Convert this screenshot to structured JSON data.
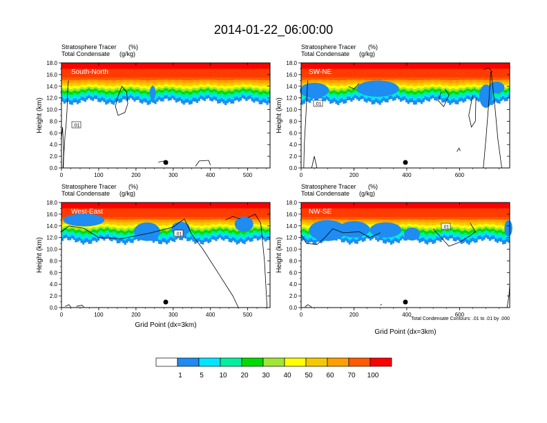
{
  "title": "2014-01-22_06:00:00",
  "chart_data": [
    {
      "type": "heatmap",
      "name": "South-North",
      "tracer_label": "Stratosphere Tracer",
      "tracer_units": "(%)",
      "cond_label": "Total Condensate",
      "cond_units": "(g/kg)",
      "ylabel": "Height (km)",
      "xlabel": "",
      "xlim": [
        0,
        560
      ],
      "ylim": [
        0,
        18
      ],
      "xticks": [
        0,
        100,
        200,
        300,
        400,
        500
      ],
      "yticks": [
        "0.0",
        "2.0",
        "4.0",
        "6.0",
        "8.0",
        "10.0",
        "12.0",
        "14.0",
        "16.0",
        "18.0"
      ],
      "contour_label": ".01",
      "marker_x": 280
    },
    {
      "type": "heatmap",
      "name": "SW-NE",
      "tracer_label": "Stratosphere Tracer",
      "tracer_units": "(%)",
      "cond_label": "Total Condensate",
      "cond_units": "(g/kg)",
      "ylabel": "Height (km)",
      "xlabel": "",
      "xlim": [
        0,
        790
      ],
      "ylim": [
        0,
        18
      ],
      "xticks": [
        0,
        200,
        400,
        600
      ],
      "yticks": [
        "0.0",
        "2.0",
        "4.0",
        "6.0",
        "8.0",
        "10.0",
        "12.0",
        "14.0",
        "16.0",
        "18.0"
      ],
      "contour_label": ".01",
      "marker_x": 395
    },
    {
      "type": "heatmap",
      "name": "West-East",
      "tracer_label": "Stratosphere Tracer",
      "tracer_units": "(%)",
      "cond_label": "Total Condensate",
      "cond_units": "(g/kg)",
      "ylabel": "Height (km)",
      "xlabel": "Grid Point (dx=3km)",
      "xlim": [
        0,
        560
      ],
      "ylim": [
        0,
        18
      ],
      "xticks": [
        0,
        100,
        200,
        300,
        400,
        500
      ],
      "yticks": [
        "0.0",
        "2.0",
        "4.0",
        "6.0",
        "8.0",
        "10.0",
        "12.0",
        "14.0",
        "16.0",
        "18.0"
      ],
      "contour_label": ".01",
      "marker_x": 280
    },
    {
      "type": "heatmap",
      "name": "NW-SE",
      "tracer_label": "Stratosphere Tracer",
      "tracer_units": "(%)",
      "cond_label": "Total Condensate",
      "cond_units": "(g/kg)",
      "ylabel": "Height (km)",
      "xlabel": "Grid Point (dx=3km)",
      "xlim": [
        0,
        790
      ],
      "ylim": [
        0,
        18
      ],
      "xticks": [
        0,
        200,
        400,
        600
      ],
      "yticks": [
        "0.0",
        "2.0",
        "4.0",
        "6.0",
        "8.0",
        "10.0",
        "12.0",
        "14.0",
        "16.0",
        "18.0"
      ],
      "contour_label": ".01",
      "marker_x": 395
    }
  ],
  "contour_note": "Total Condensate Contours: .01 to .01 by .000",
  "colorbar": {
    "levels": [
      "1",
      "5",
      "10",
      "20",
      "30",
      "40",
      "50",
      "60",
      "70",
      "100"
    ],
    "colors": [
      "#ffffff",
      "#1e8cf0",
      "#00e6ff",
      "#00f0a0",
      "#00dc00",
      "#a0e632",
      "#ffff00",
      "#f5c800",
      "#ffa000",
      "#ff5a00",
      "#ff0000"
    ]
  },
  "profile_colors": [
    "#ff0000",
    "#ff3c00",
    "#ff5a00",
    "#ffa000",
    "#f5c800",
    "#ffff00",
    "#a0e632",
    "#00dc00",
    "#00f0a0",
    "#00e6ff",
    "#1e8cf0"
  ]
}
